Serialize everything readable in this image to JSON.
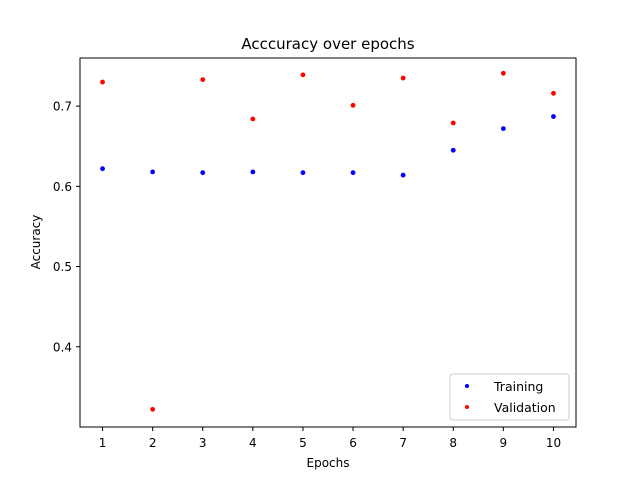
{
  "chart_data": {
    "type": "scatter",
    "title": "Acccuracy over epochs",
    "xlabel": "Epochs",
    "ylabel": "Accuracy",
    "xlim": [
      0.55,
      10.45
    ],
    "ylim": [
      0.3,
      0.76
    ],
    "xticks": [
      1,
      2,
      3,
      4,
      5,
      6,
      7,
      8,
      9,
      10
    ],
    "yticks": [
      0.4,
      0.5,
      0.6,
      0.7
    ],
    "ytick_labels": [
      "0.4",
      "0.5",
      "0.6",
      "0.7"
    ],
    "legend_position": "lower-right",
    "series": [
      {
        "name": "Training",
        "color": "#0000ff",
        "x": [
          1,
          2,
          3,
          4,
          5,
          6,
          7,
          8,
          9,
          10
        ],
        "y": [
          0.622,
          0.618,
          0.617,
          0.618,
          0.617,
          0.617,
          0.614,
          0.645,
          0.672,
          0.687
        ]
      },
      {
        "name": "Validation",
        "color": "#ff0000",
        "x": [
          1,
          2,
          3,
          4,
          5,
          6,
          7,
          8,
          9,
          10
        ],
        "y": [
          0.73,
          0.322,
          0.733,
          0.684,
          0.739,
          0.701,
          0.735,
          0.679,
          0.741,
          0.716
        ]
      }
    ]
  }
}
